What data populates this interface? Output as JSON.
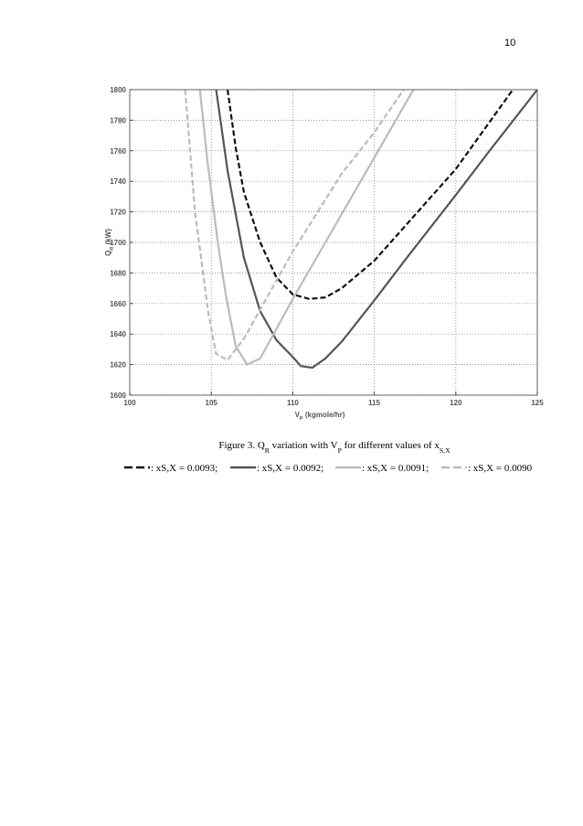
{
  "page_number": "10",
  "caption": [
    {
      "text": "Figure 3. "
    },
    {
      "text": "Q"
    },
    {
      "text": "R",
      "sub": true
    },
    {
      "text": " variation with "
    },
    {
      "text": "V"
    },
    {
      "text": "P",
      "sub": true
    },
    {
      "text": " for different values of "
    },
    {
      "text": "x"
    },
    {
      "text": "S,X",
      "sub": true
    }
  ],
  "chart_data": {
    "type": "line",
    "xlabel": [
      {
        "text": "V"
      },
      {
        "text": "P",
        "sub": true
      },
      {
        "text": " (kgmole/hr)"
      }
    ],
    "ylabel": [
      {
        "text": "Q"
      },
      {
        "text": "R",
        "sub": true
      },
      {
        "text": " (kW)"
      }
    ],
    "xlim": [
      100,
      125
    ],
    "xticks": [
      100,
      105,
      110,
      115,
      120,
      125
    ],
    "ylim": [
      1600,
      1800
    ],
    "yticks": [
      1600,
      1620,
      1640,
      1660,
      1680,
      1700,
      1720,
      1740,
      1760,
      1780,
      1800
    ],
    "grid": true,
    "series": [
      {
        "name": ": xS,X = 0.0093;",
        "color": "#111111",
        "dashed": true,
        "x": [
          106,
          106.5,
          107,
          108,
          109,
          110,
          111,
          112,
          113,
          115,
          117,
          120,
          123.5
        ],
        "values": [
          1800,
          1762,
          1733,
          1700,
          1677,
          1666,
          1663,
          1664,
          1670,
          1688,
          1712,
          1748,
          1800
        ]
      },
      {
        "name": ": xS,X = 0.0092;",
        "color": "#555555",
        "dashed": false,
        "x": [
          105.3,
          106,
          107,
          108,
          109,
          110,
          110.5,
          111.2,
          112,
          113,
          115,
          117,
          120,
          122,
          125
        ],
        "values": [
          1800,
          1747,
          1690,
          1655,
          1636,
          1625,
          1619,
          1618,
          1624,
          1635,
          1662,
          1690,
          1731,
          1759,
          1800
        ]
      },
      {
        "name": ": xS,X = 0.0091;",
        "color": "#bbbbbb",
        "dashed": false,
        "x": [
          104.3,
          104.8,
          105.4,
          105.9,
          106.5,
          107.2,
          108,
          110,
          112,
          114,
          116,
          117.4
        ],
        "values": [
          1800,
          1750,
          1700,
          1665,
          1632,
          1620,
          1624,
          1663,
          1700,
          1737,
          1774,
          1800
        ]
      },
      {
        "name": ": xS,X = 0.0090",
        "color": "#bbbbbb",
        "dashed": true,
        "x": [
          103.4,
          103.7,
          104,
          104.5,
          104.8,
          105.3,
          106,
          107,
          110,
          113,
          115,
          116.8
        ],
        "values": [
          1800,
          1760,
          1720,
          1680,
          1655,
          1627,
          1623,
          1637,
          1694,
          1745,
          1772,
          1800
        ]
      }
    ]
  }
}
